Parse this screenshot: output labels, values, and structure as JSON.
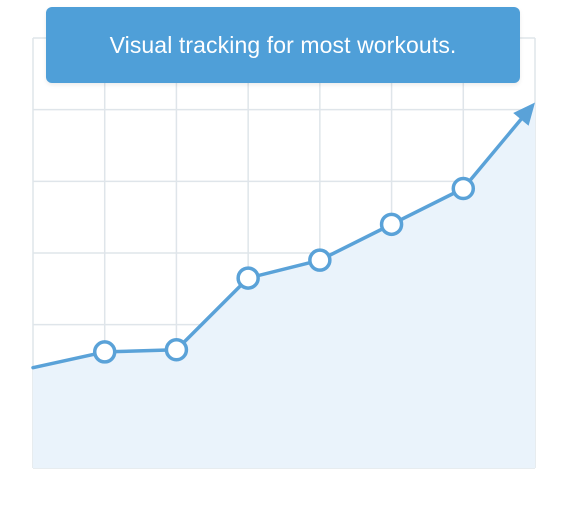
{
  "banner": {
    "text": "Visual tracking for most workouts."
  },
  "colors": {
    "accent": "#4f9fd8",
    "line": "#5aa2d8",
    "area_fill": "#eaf3fb",
    "grid": "#dfe5ea",
    "marker_fill": "#ffffff"
  },
  "chart_data": {
    "type": "line",
    "title": "",
    "xlabel": "",
    "ylabel": "",
    "x": [
      0,
      1,
      2,
      3,
      4,
      5,
      6,
      7
    ],
    "xlim": [
      0,
      7
    ],
    "ylim": [
      0,
      6
    ],
    "series": [
      {
        "values": [
          1.4,
          1.62,
          1.65,
          2.65,
          2.9,
          3.4,
          3.9,
          5.1
        ],
        "markers": [
          false,
          true,
          true,
          true,
          true,
          true,
          true,
          false
        ],
        "end_arrow": true
      }
    ],
    "fill_under": true,
    "grid": true
  }
}
